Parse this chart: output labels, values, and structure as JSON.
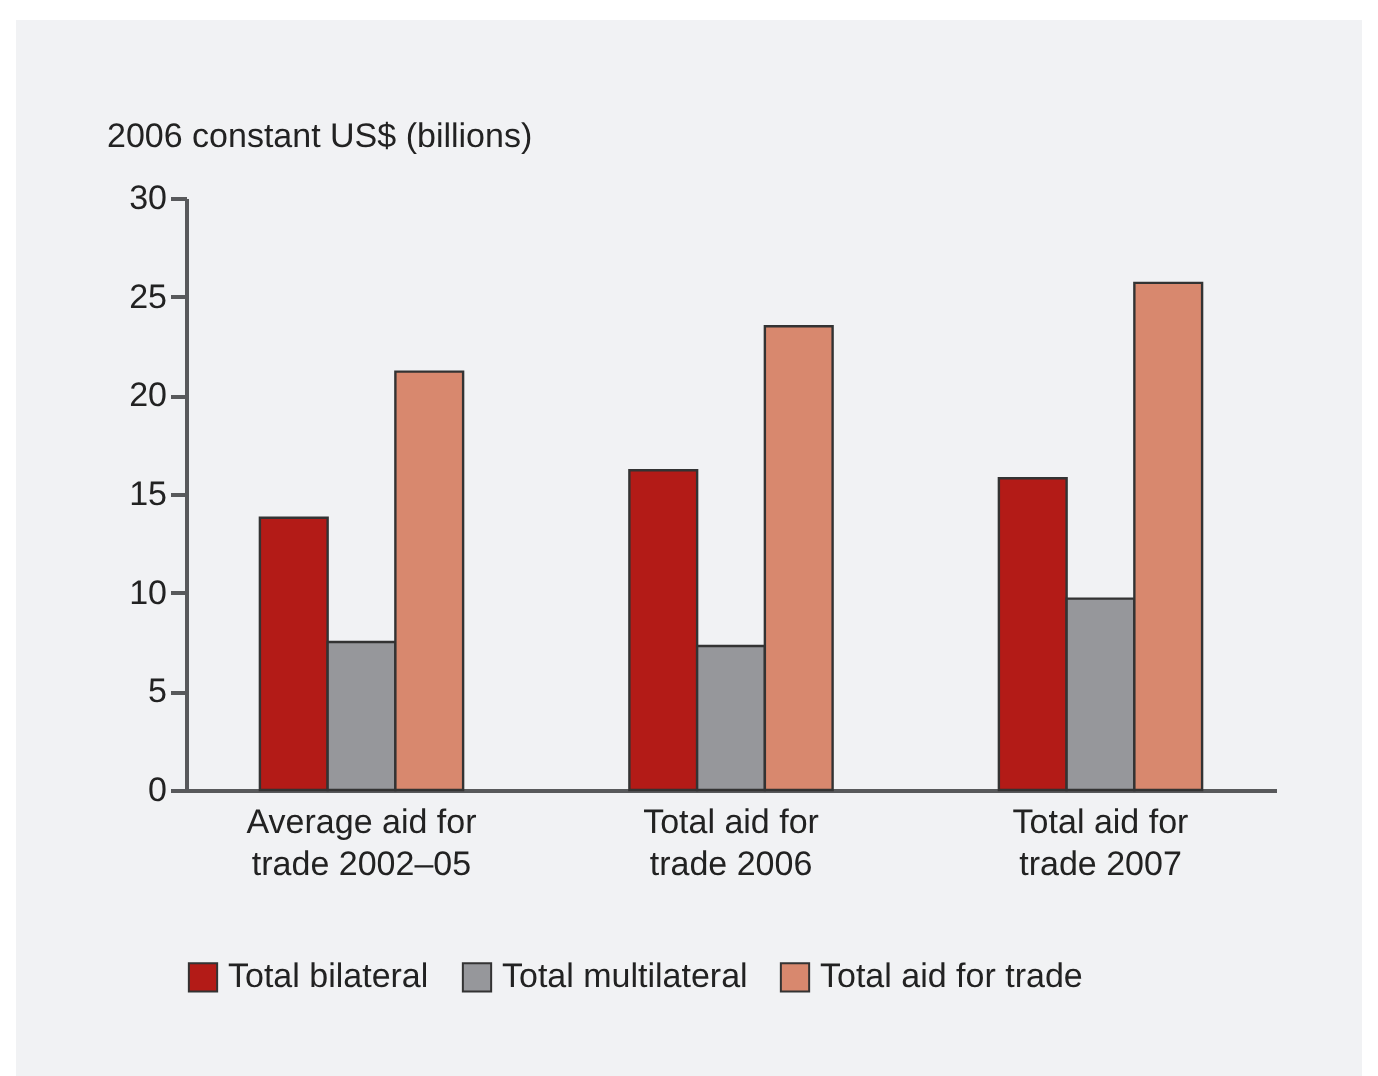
{
  "chart_data": {
    "type": "bar",
    "ylabel": "2006 constant US$ (billions)",
    "categories": [
      "Average aid for trade 2002–05",
      "Total aid for trade 2006",
      "Total aid for trade 2007"
    ],
    "series": [
      {
        "name": "Total bilateral",
        "color": "#b31b17",
        "values": [
          13.8,
          16.2,
          15.8
        ]
      },
      {
        "name": "Total multilateral",
        "color": "#96979b",
        "values": [
          7.5,
          7.3,
          9.7
        ]
      },
      {
        "name": "Total aid for trade",
        "color": "#d8886e",
        "values": [
          21.2,
          23.5,
          25.7
        ]
      }
    ],
    "ylim": [
      0,
      30
    ],
    "yticks": [
      0,
      5,
      10,
      15,
      20,
      25,
      30
    ],
    "grid": false,
    "legend": "bottom"
  }
}
